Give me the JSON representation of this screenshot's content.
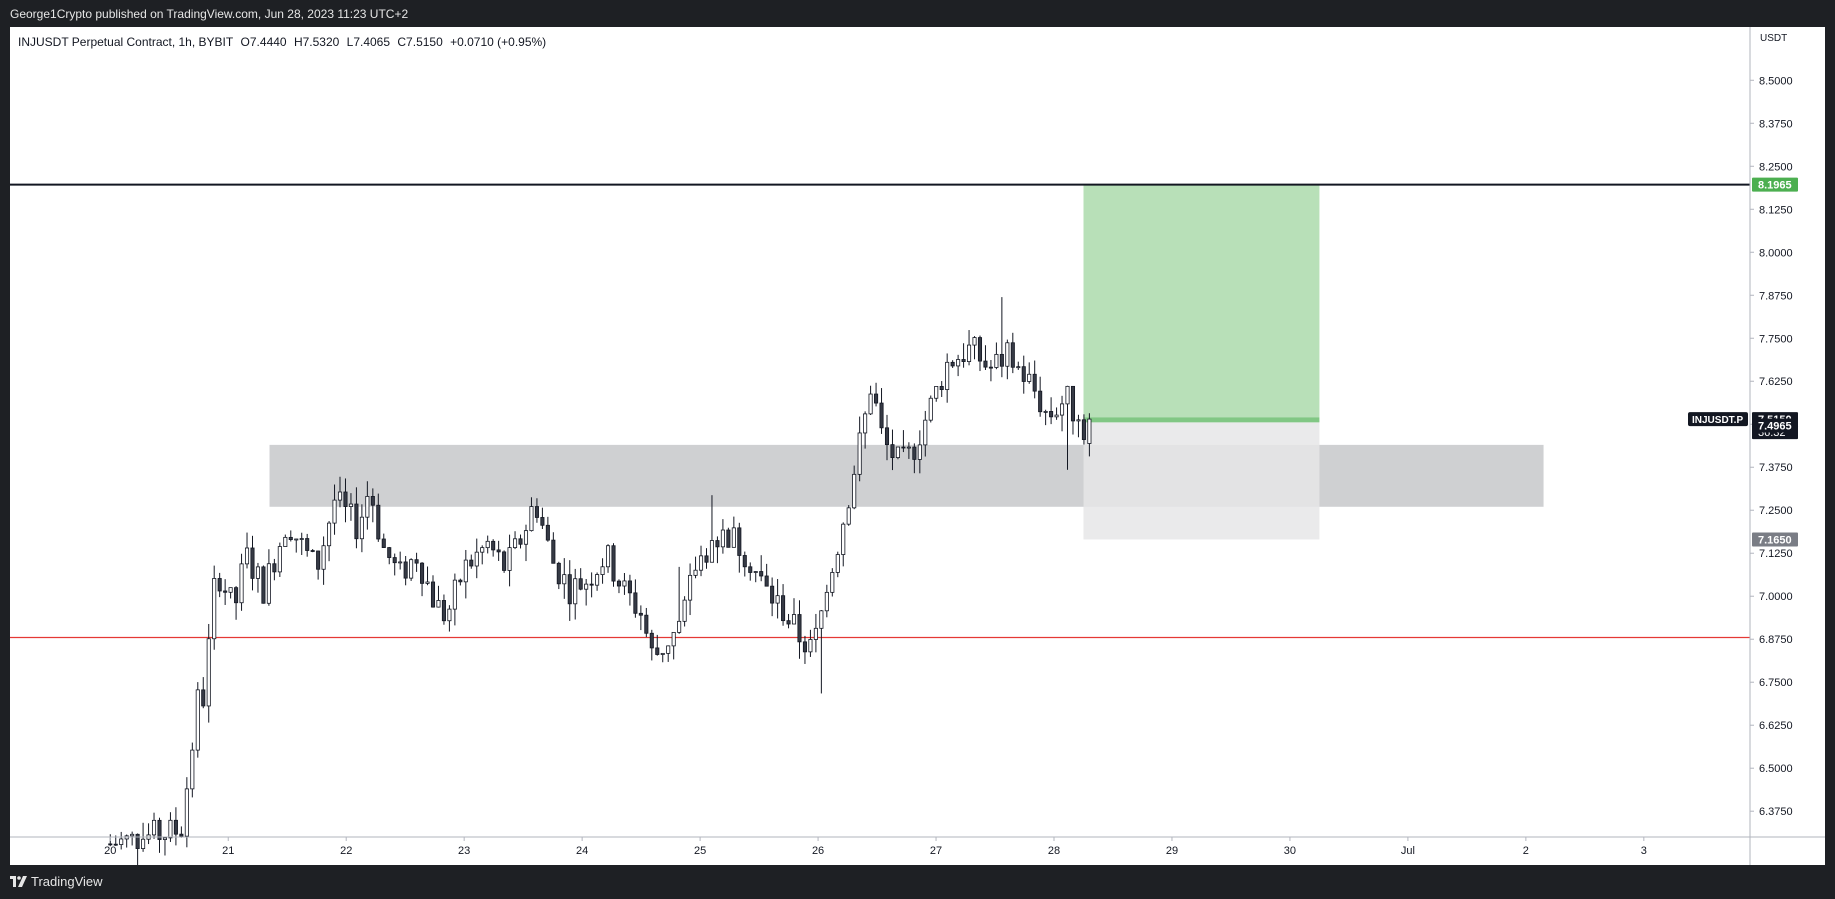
{
  "header": {
    "publisher": "George1Crypto published on TradingView.com, Jun 28, 2023 11:23 UTC+2"
  },
  "footer": {
    "brand": "TradingView"
  },
  "legend": {
    "symbol": "INJUSDT Perpetual Contract, 1h, BYBIT",
    "open": "O7.4440",
    "high": "H7.5320",
    "low": "L7.4065",
    "close": "C7.5150",
    "change": "+0.0710 (+0.95%)"
  },
  "colors": {
    "frame": "#1e2024",
    "candle_up": "#ffffff",
    "candle_down": "#363a45",
    "red_line": "#e53935",
    "black_line": "#131722",
    "target_zone": "#b8e0b8",
    "stop_zone": "#e6e6e8",
    "sr_zone": "#a8a9ad",
    "label_green": "#4caf50",
    "label_grey": "#7a7d85",
    "label_dark": "#131722"
  },
  "chart_data": {
    "type": "candlestick",
    "title": "INJUSDT Perpetual Contract, 1h, BYBIT",
    "currency_label": "USDT",
    "y_ticks": [
      "8.5000",
      "8.3750",
      "8.2500",
      "8.1250",
      "8.0000",
      "7.8750",
      "7.7500",
      "7.6250",
      "7.5000",
      "7.3750",
      "7.2500",
      "7.1250",
      "7.0000",
      "6.8750",
      "6.7500",
      "6.6250",
      "6.5000",
      "6.3750"
    ],
    "x_ticks": [
      "20",
      "21",
      "22",
      "23",
      "24",
      "25",
      "26",
      "27",
      "28",
      "29",
      "30",
      "Jul",
      "2",
      "3"
    ],
    "ylim": [
      6.3,
      8.62
    ],
    "grid": false,
    "candle_path": [
      [
        20.25,
        6.28
      ],
      [
        20.85,
        6.32
      ],
      [
        20.95,
        6.58
      ],
      [
        21.0,
        6.72
      ],
      [
        21.05,
        6.7
      ],
      [
        21.1,
        6.92
      ],
      [
        21.15,
        7.08
      ],
      [
        21.3,
        6.96
      ],
      [
        21.4,
        7.12
      ],
      [
        21.55,
        7.02
      ],
      [
        21.75,
        7.22
      ],
      [
        21.9,
        7.13
      ],
      [
        22.0,
        7.08
      ],
      [
        22.15,
        7.28
      ],
      [
        22.35,
        7.2
      ],
      [
        22.45,
        7.32
      ],
      [
        22.55,
        7.15
      ],
      [
        22.7,
        7.06
      ],
      [
        22.85,
        7.12
      ],
      [
        23.0,
        6.98
      ],
      [
        23.1,
        6.94
      ],
      [
        23.25,
        7.08
      ],
      [
        23.45,
        7.15
      ],
      [
        23.6,
        7.08
      ],
      [
        23.75,
        7.18
      ],
      [
        23.85,
        7.28
      ],
      [
        24.0,
        7.1
      ],
      [
        24.15,
        7.02
      ],
      [
        24.3,
        7.05
      ],
      [
        24.45,
        7.12
      ],
      [
        24.6,
        7.02
      ],
      [
        24.75,
        6.95
      ],
      [
        24.85,
        6.82
      ],
      [
        25.0,
        6.88
      ],
      [
        25.1,
        6.92
      ],
      [
        25.2,
        7.08
      ],
      [
        25.35,
        7.16
      ],
      [
        25.5,
        7.18
      ],
      [
        25.65,
        7.12
      ],
      [
        25.8,
        7.02
      ],
      [
        25.95,
        6.96
      ],
      [
        26.1,
        6.88
      ],
      [
        26.2,
        6.84
      ],
      [
        26.35,
        7.05
      ],
      [
        26.5,
        7.28
      ],
      [
        26.65,
        7.52
      ],
      [
        26.7,
        7.62
      ],
      [
        26.8,
        7.45
      ],
      [
        26.95,
        7.38
      ],
      [
        27.05,
        7.42
      ],
      [
        27.2,
        7.55
      ],
      [
        27.35,
        7.68
      ],
      [
        27.55,
        7.72
      ],
      [
        27.7,
        7.66
      ],
      [
        27.85,
        7.7
      ],
      [
        28.05,
        7.62
      ],
      [
        28.2,
        7.52
      ],
      [
        28.35,
        7.58
      ],
      [
        28.5,
        7.49
      ],
      [
        28.55,
        7.515
      ]
    ],
    "candle_count": 180,
    "last_candle": {
      "open": 7.444,
      "high": 7.532,
      "low": 7.4065,
      "close": 7.515
    },
    "horizontal_lines": [
      {
        "name": "target-level",
        "value": 8.1965,
        "color": "#131722"
      },
      {
        "name": "support-level",
        "value": 6.88,
        "color": "#e53935"
      }
    ],
    "zones": [
      {
        "name": "sr-zone",
        "x_from": 21.6,
        "x_to": 32.4,
        "y_from": 7.26,
        "y_to": 7.44
      },
      {
        "name": "target-zone",
        "x_from": 28.5,
        "x_to": 30.5,
        "y_from": 7.52,
        "y_to": 8.1965
      },
      {
        "name": "stop-zone",
        "x_from": 28.5,
        "x_to": 30.5,
        "y_from": 7.165,
        "y_to": 7.505
      }
    ],
    "price_labels": [
      {
        "name": "target-price-label",
        "text": "8.1965",
        "value": 8.1965,
        "style": "green"
      },
      {
        "name": "last-price-label",
        "text": "7.5150",
        "value": 7.515,
        "style": "dark"
      },
      {
        "name": "countdown-label",
        "text": "36:32",
        "value": 7.5,
        "style": "dark"
      },
      {
        "name": "entry-price-label",
        "text": "7.4965",
        "value": 7.4965,
        "style": "dark"
      },
      {
        "name": "stop-price-label",
        "text": "7.1650",
        "value": 7.165,
        "style": "grey"
      }
    ],
    "symbol_tag": "INJUSDT.P"
  }
}
